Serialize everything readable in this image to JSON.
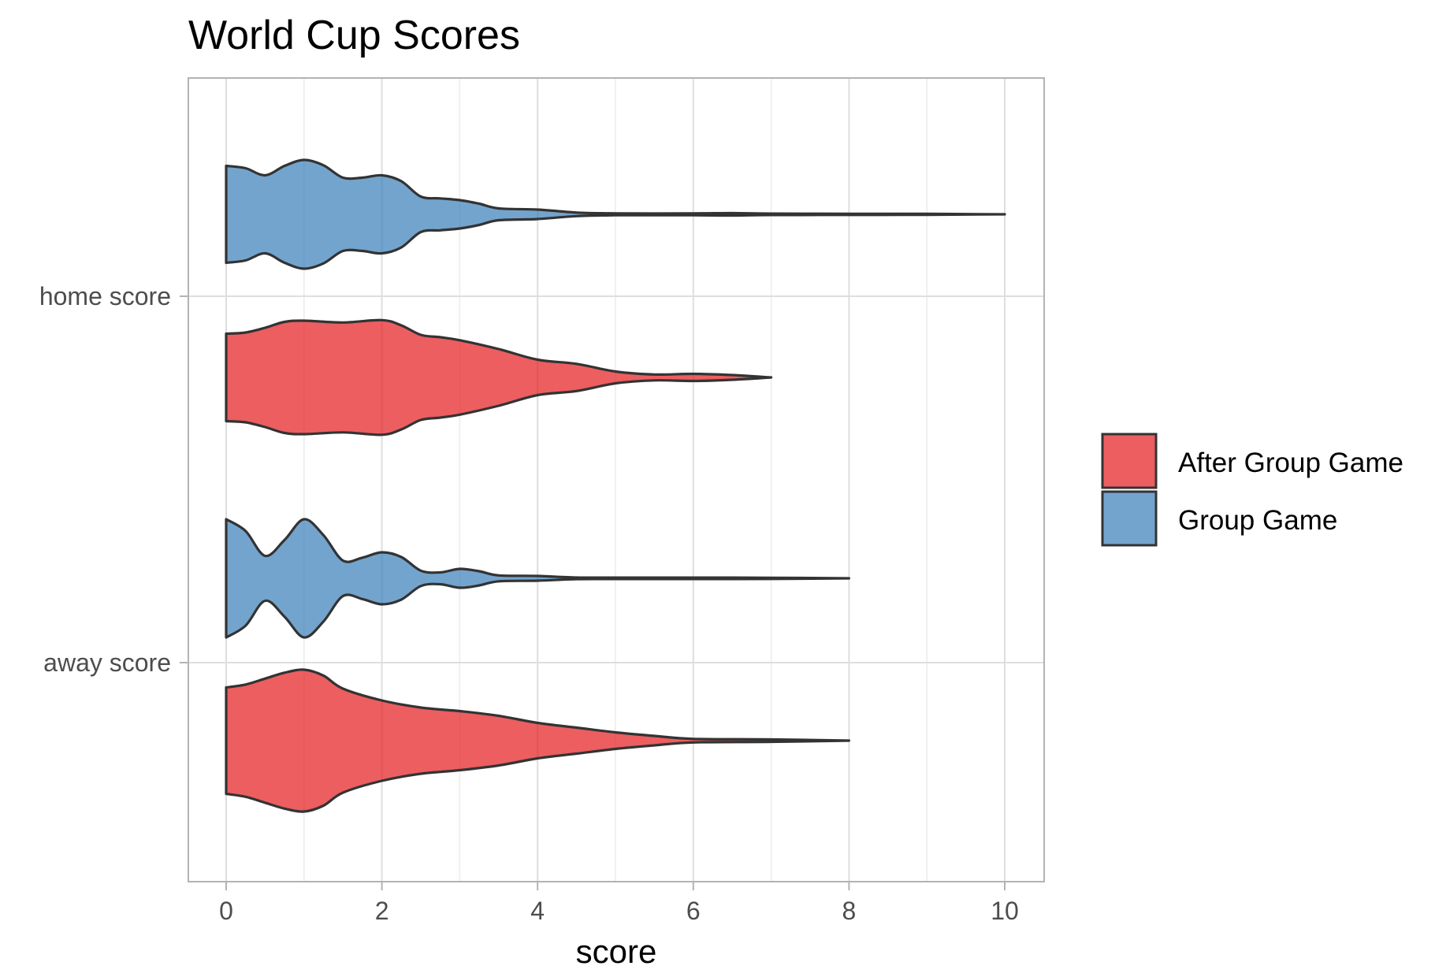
{
  "chart_data": {
    "type": "violin",
    "orientation": "horizontal",
    "title": "World Cup Scores",
    "xlabel": "score",
    "ylabel": "",
    "xlim": [
      -0.5,
      10.5
    ],
    "x_ticks": [
      0,
      2,
      4,
      6,
      8,
      10
    ],
    "x_tick_labels": [
      "0",
      "2",
      "4",
      "6",
      "8",
      "10"
    ],
    "x_minor_ticks": [
      1,
      3,
      5,
      7,
      9
    ],
    "categories": [
      "home score",
      "away score"
    ],
    "grid": true,
    "legend_position": "right",
    "colors": {
      "After Group Game": "#e41a1c",
      "Group Game": "#377eb8"
    },
    "fill_opacity": 0.7,
    "outline_color": "#333333",
    "panel_border_color": "#b3b3b3",
    "grid_color": "#dedede",
    "legend": [
      {
        "name": "After Group Game",
        "color": "#e41a1c"
      },
      {
        "name": "Group Game",
        "color": "#377eb8"
      }
    ],
    "series": [
      {
        "name": "Group Game",
        "category": "home score",
        "min": 0,
        "max": 10,
        "density_profile": [
          [
            0,
            0.82
          ],
          [
            0.25,
            0.78
          ],
          [
            0.5,
            0.66
          ],
          [
            0.75,
            0.82
          ],
          [
            1,
            0.92
          ],
          [
            1.25,
            0.83
          ],
          [
            1.5,
            0.62
          ],
          [
            1.75,
            0.62
          ],
          [
            2,
            0.66
          ],
          [
            2.25,
            0.56
          ],
          [
            2.5,
            0.3
          ],
          [
            2.75,
            0.27
          ],
          [
            3,
            0.24
          ],
          [
            3.25,
            0.18
          ],
          [
            3.5,
            0.1
          ],
          [
            4,
            0.08
          ],
          [
            4.5,
            0.03
          ],
          [
            5,
            0.016
          ],
          [
            6,
            0.016
          ],
          [
            6.5,
            0.02
          ],
          [
            7,
            0.012
          ],
          [
            8,
            0.01
          ],
          [
            9,
            0.008
          ],
          [
            9.5,
            0.004
          ],
          [
            10,
            0.0
          ]
        ]
      },
      {
        "name": "After Group Game",
        "category": "home score",
        "min": 0,
        "max": 7,
        "density_profile": [
          [
            0,
            0.74
          ],
          [
            0.25,
            0.76
          ],
          [
            0.5,
            0.84
          ],
          [
            0.75,
            0.94
          ],
          [
            1,
            0.96
          ],
          [
            1.5,
            0.93
          ],
          [
            2,
            0.97
          ],
          [
            2.25,
            0.88
          ],
          [
            2.5,
            0.72
          ],
          [
            2.75,
            0.68
          ],
          [
            3,
            0.63
          ],
          [
            3.5,
            0.48
          ],
          [
            4,
            0.3
          ],
          [
            4.5,
            0.23
          ],
          [
            5,
            0.1
          ],
          [
            5.5,
            0.05
          ],
          [
            6,
            0.06
          ],
          [
            6.5,
            0.04
          ],
          [
            7,
            0.0
          ]
        ]
      },
      {
        "name": "Group Game",
        "category": "away score",
        "min": 0,
        "max": 8,
        "density_profile": [
          [
            0,
            1.0
          ],
          [
            0.25,
            0.8
          ],
          [
            0.5,
            0.38
          ],
          [
            0.75,
            0.65
          ],
          [
            1,
            1.0
          ],
          [
            1.25,
            0.73
          ],
          [
            1.5,
            0.3
          ],
          [
            1.75,
            0.35
          ],
          [
            2,
            0.44
          ],
          [
            2.25,
            0.36
          ],
          [
            2.5,
            0.13
          ],
          [
            2.75,
            0.1
          ],
          [
            3,
            0.16
          ],
          [
            3.25,
            0.12
          ],
          [
            3.5,
            0.05
          ],
          [
            4,
            0.04
          ],
          [
            4.5,
            0.014
          ],
          [
            5,
            0.012
          ],
          [
            6,
            0.012
          ],
          [
            7,
            0.01
          ],
          [
            8,
            0.0
          ]
        ]
      },
      {
        "name": "After Group Game",
        "category": "away score",
        "min": 0,
        "max": 8,
        "density_profile": [
          [
            0,
            0.9
          ],
          [
            0.25,
            0.95
          ],
          [
            0.5,
            1.05
          ],
          [
            0.75,
            1.15
          ],
          [
            1,
            1.2
          ],
          [
            1.25,
            1.1
          ],
          [
            1.5,
            0.88
          ],
          [
            2,
            0.68
          ],
          [
            2.5,
            0.56
          ],
          [
            3,
            0.5
          ],
          [
            3.5,
            0.42
          ],
          [
            4,
            0.3
          ],
          [
            4.5,
            0.22
          ],
          [
            5,
            0.14
          ],
          [
            5.5,
            0.08
          ],
          [
            6,
            0.03
          ],
          [
            7,
            0.02
          ],
          [
            8,
            0.0
          ]
        ]
      }
    ]
  }
}
